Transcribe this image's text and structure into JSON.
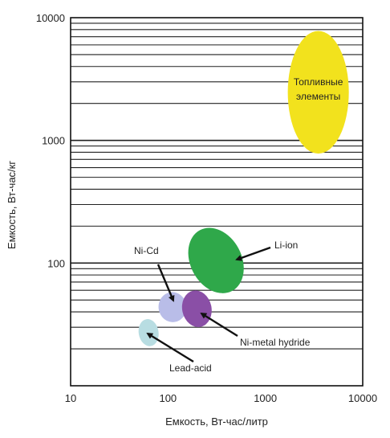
{
  "chart_data": {
    "type": "scatter",
    "title": "",
    "xlabel": "Емкость, Вт-час/литр",
    "ylabel": "Емкость, Вт-час/кг",
    "x_scale": "log",
    "y_scale": "log",
    "xlim": [
      10,
      10000
    ],
    "ylim": [
      10,
      10000
    ],
    "x_ticks": [
      10,
      100,
      1000,
      10000
    ],
    "y_ticks": [
      100,
      1000,
      10000
    ],
    "x_tick_labels": [
      "10",
      "100",
      "1000",
      "10000"
    ],
    "y_tick_labels": [
      "100",
      "1000",
      "10000"
    ],
    "grid": "horizontal",
    "regions": [
      {
        "name": "Lead-acid",
        "x_range": [
          50,
          80
        ],
        "y_range": [
          21,
          35
        ],
        "color": "#b8dde2",
        "label": "Lead-acid"
      },
      {
        "name": "Ni-Cd",
        "x_range": [
          80,
          155
        ],
        "y_range": [
          33,
          58
        ],
        "color": "#b9bde8",
        "label": "Ni-Cd"
      },
      {
        "name": "Ni-metal hydride",
        "x_range": [
          140,
          280
        ],
        "y_range": [
          30,
          60
        ],
        "color": "#8a4fa6",
        "label": "Ni-metal hydride"
      },
      {
        "name": "Li-ion",
        "x_range": [
          170,
          570
        ],
        "y_range": [
          55,
          200
        ],
        "color": "#2fa84a",
        "label": "Li-ion"
      },
      {
        "name": "Топливные элементы",
        "x_range": [
          1700,
          7200
        ],
        "y_range": [
          780,
          7800
        ],
        "color": "#f2e21d",
        "label": "Топливные элементы"
      }
    ]
  }
}
